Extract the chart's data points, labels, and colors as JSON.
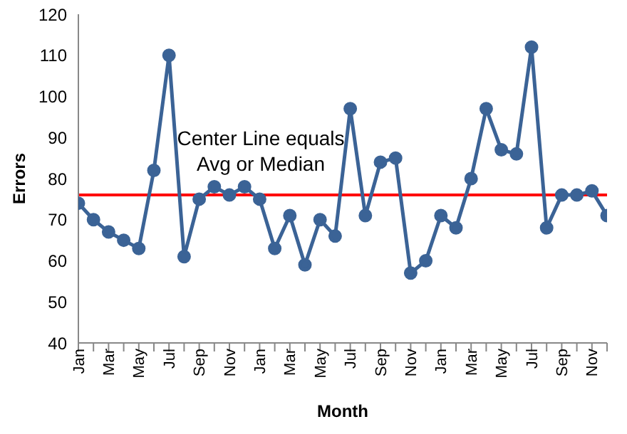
{
  "chart_data": {
    "type": "line",
    "xlabel": "Month",
    "ylabel": "Errors",
    "categories": [
      "Jan",
      null,
      "Mar",
      null,
      "May",
      null,
      "Jul",
      null,
      "Sep",
      null,
      "Nov",
      null,
      "Jan",
      null,
      "Mar",
      null,
      "May",
      null,
      "Jul",
      null,
      "Sep",
      null,
      "Nov",
      null,
      "Jan",
      null,
      "Mar",
      null,
      "May",
      null,
      "Jul",
      null,
      "Sep",
      null,
      "Nov",
      null
    ],
    "series": [
      {
        "color": "#3b6396",
        "values": [
          74,
          70,
          67,
          65,
          63,
          82,
          110,
          61,
          75,
          78,
          76,
          78,
          75,
          63,
          71,
          59,
          70,
          66,
          97,
          71,
          84,
          85,
          57,
          60,
          71,
          68,
          80,
          97,
          87,
          86,
          112,
          68,
          76,
          76,
          77,
          71
        ]
      }
    ],
    "ylim": [
      40,
      120
    ],
    "yticks": [
      40,
      50,
      60,
      70,
      80,
      90,
      100,
      110,
      120
    ],
    "grid": false,
    "legend": false,
    "marker": "circle",
    "line_style": "solid",
    "ref_lines": [
      {
        "axis": "y",
        "value": 76,
        "color": "#ff0000"
      }
    ],
    "annotations": [
      "Center Line equals Avg or Median"
    ]
  }
}
